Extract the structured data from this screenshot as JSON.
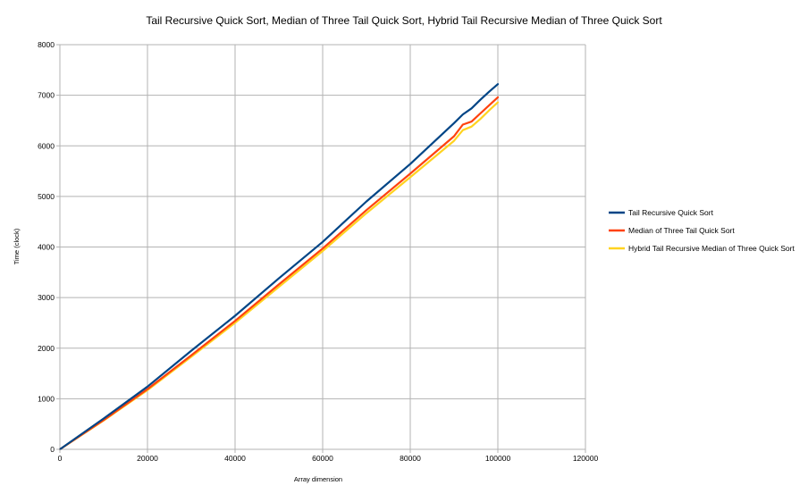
{
  "chart_data": {
    "type": "line",
    "title": "Tail Recursive Quick Sort, Median of Three Tail Quick Sort, Hybrid Tail Recursive Median of Three Quick Sort",
    "xlabel": "Array dimension",
    "ylabel": "Time (clock)",
    "xlim": [
      0,
      120000
    ],
    "ylim": [
      0,
      8000
    ],
    "xticks": [
      "0",
      "20000",
      "40000",
      "60000",
      "80000",
      "100000",
      "120000"
    ],
    "yticks": [
      "0",
      "1000",
      "2000",
      "3000",
      "4000",
      "5000",
      "6000",
      "7000",
      "8000"
    ],
    "grid": true,
    "legend_position": "right",
    "x": [
      0,
      10000,
      20000,
      30000,
      40000,
      50000,
      60000,
      70000,
      80000,
      90000,
      92000,
      94000,
      96000,
      98000,
      100000
    ],
    "series": [
      {
        "name": "Tail Recursive Quick Sort",
        "color": "#004586",
        "values": [
          0,
          610,
          1240,
          1950,
          2640,
          3380,
          4100,
          4900,
          5640,
          6450,
          6620,
          6740,
          6910,
          7070,
          7220
        ]
      },
      {
        "name": "Median of Three Tail Quick Sort",
        "color": "#ff420e",
        "values": [
          0,
          580,
          1190,
          1860,
          2540,
          3260,
          3970,
          4730,
          5450,
          6190,
          6420,
          6480,
          6640,
          6800,
          6960
        ]
      },
      {
        "name": "Hybrid Tail Recursive Median of Three Quick Sort",
        "color": "#ffd320",
        "values": [
          0,
          570,
          1170,
          1830,
          2500,
          3210,
          3920,
          4670,
          5380,
          6100,
          6310,
          6380,
          6530,
          6700,
          6860
        ]
      }
    ]
  }
}
